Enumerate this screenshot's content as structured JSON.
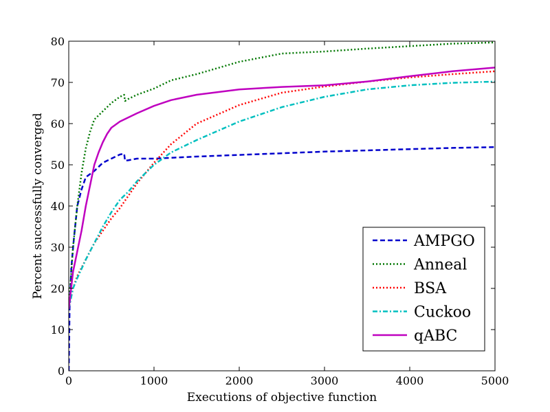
{
  "chart_data": {
    "type": "line",
    "title": "",
    "xlabel": "Executions of objective function",
    "ylabel": "Percent successfully converged",
    "xlim": [
      0,
      5000
    ],
    "ylim": [
      0,
      80
    ],
    "xticks": [
      0,
      1000,
      2000,
      3000,
      4000,
      5000
    ],
    "yticks": [
      0,
      10,
      20,
      30,
      40,
      50,
      60,
      70,
      80
    ],
    "grid": false,
    "legend_position": "lower-right",
    "series": [
      {
        "name": "AMPGO",
        "color": "#0000cc",
        "line_style": "dashed",
        "x": [
          0,
          10,
          30,
          60,
          100,
          150,
          200,
          300,
          400,
          500,
          600,
          650,
          660,
          700,
          800,
          1000,
          1500,
          2000,
          2500,
          3000,
          3500,
          4000,
          4500,
          5000
        ],
        "y": [
          0,
          15,
          25,
          32,
          40,
          44,
          47,
          48.5,
          50.5,
          51.5,
          52.5,
          52.7,
          51,
          51.1,
          51.5,
          51.5,
          52,
          52.4,
          52.8,
          53.2,
          53.5,
          53.8,
          54.1,
          54.3
        ]
      },
      {
        "name": "Anneal",
        "color": "#007700",
        "line_style": "dotted",
        "x": [
          0,
          50,
          100,
          150,
          200,
          250,
          300,
          350,
          400,
          500,
          600,
          650,
          660,
          700,
          800,
          1000,
          1200,
          1500,
          2000,
          2500,
          3000,
          3500,
          4000,
          4500,
          5000
        ],
        "y": [
          15,
          30,
          40,
          48,
          54,
          58,
          61,
          62,
          63,
          65,
          66.5,
          67,
          65.5,
          66,
          67,
          68.5,
          70.5,
          72,
          75,
          77,
          77.5,
          78.2,
          78.8,
          79.4,
          79.7
        ]
      },
      {
        "name": "BSA",
        "color": "#ff0000",
        "line_style": "dotted",
        "x": [
          0,
          50,
          100,
          200,
          300,
          400,
          500,
          600,
          700,
          800,
          1000,
          1200,
          1500,
          2000,
          2500,
          3000,
          3500,
          4000,
          4500,
          5000
        ],
        "y": [
          15,
          20,
          23,
          27,
          31,
          34,
          37,
          39.5,
          42.5,
          45.5,
          50.5,
          55,
          60,
          64.5,
          67.5,
          69,
          70.2,
          71.2,
          72,
          72.7
        ]
      },
      {
        "name": "Cuckoo",
        "color": "#00bfbf",
        "line_style": "dashdot",
        "x": [
          0,
          50,
          100,
          200,
          300,
          400,
          500,
          600,
          700,
          800,
          1000,
          1200,
          1500,
          2000,
          2500,
          3000,
          3500,
          4000,
          4500,
          5000
        ],
        "y": [
          15,
          20,
          22.5,
          27,
          31,
          35,
          38.5,
          41.5,
          43.5,
          46,
          50,
          53,
          56,
          60.5,
          64,
          66.5,
          68.3,
          69.3,
          69.9,
          70.2
        ]
      },
      {
        "name": "qABC",
        "color": "#bf00bf",
        "line_style": "solid",
        "x": [
          0,
          50,
          100,
          150,
          200,
          250,
          300,
          350,
          400,
          450,
          500,
          600,
          700,
          800,
          1000,
          1200,
          1500,
          2000,
          2500,
          3000,
          3500,
          4000,
          4500,
          5000
        ],
        "y": [
          15,
          24,
          29,
          34,
          40,
          45,
          50,
          53,
          55.5,
          57.5,
          59,
          60.5,
          61.5,
          62.5,
          64.3,
          65.7,
          67,
          68.3,
          68.9,
          69.3,
          70.2,
          71.5,
          72.7,
          73.6
        ]
      }
    ]
  }
}
